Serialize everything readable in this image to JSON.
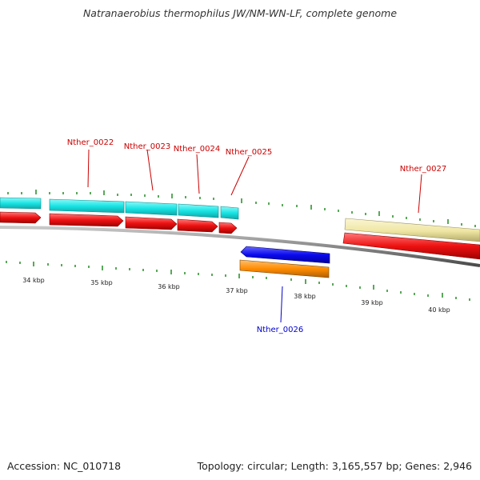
{
  "title": "Natranaerobius thermophilus JW/NM-WN-LF, complete genome",
  "accession": "Accession: NC_010718",
  "summary": "Topology: circular; Length: 3,165,557 bp; Genes: 2,946",
  "scale": {
    "labels": [
      "34 kbp",
      "35 kbp",
      "36 kbp",
      "37 kbp",
      "38 kbp",
      "39 kbp",
      "40 kbp"
    ]
  },
  "genes": [
    {
      "id": "Nther_0022",
      "strand": "plus",
      "color": "#cc0000"
    },
    {
      "id": "Nther_0023",
      "strand": "plus",
      "color": "#cc0000"
    },
    {
      "id": "Nther_0024",
      "strand": "plus",
      "color": "#cc0000"
    },
    {
      "id": "Nther_0025",
      "strand": "plus",
      "color": "#cc0000"
    },
    {
      "id": "Nther_0026",
      "strand": "minus",
      "color": "#0000cc"
    },
    {
      "id": "Nther_0027",
      "strand": "plus",
      "color": "#cc0000"
    }
  ],
  "colors": {
    "cds": "#ee1111",
    "gene_plus": "#19e5e5",
    "gene_minus_arrow": "#0a0aee",
    "gene_minus_bar": "#ff8c00",
    "pseudo": "#efe6a2",
    "tick": "#228b22",
    "backbone": "#8a8a8a"
  }
}
